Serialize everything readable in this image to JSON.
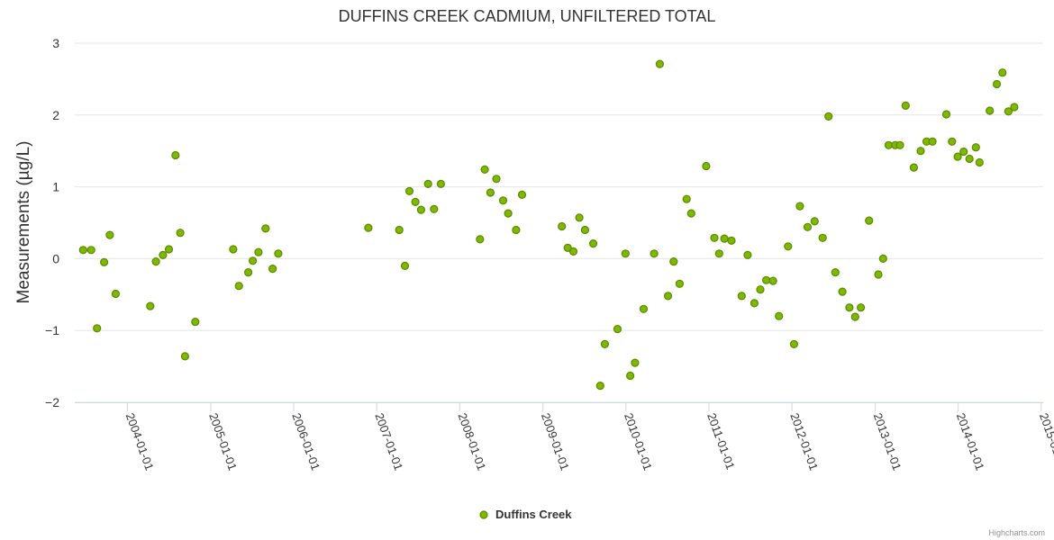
{
  "chart_data": {
    "type": "scatter",
    "title": "DUFFINS CREEK CADMIUM, UNFILTERED TOTAL",
    "xlabel": "",
    "ylabel": "Measurements (µg/L)",
    "x_axis_type": "datetime",
    "xlim": [
      "2003-05-14",
      "2015-01-10"
    ],
    "ylim": [
      -2,
      3
    ],
    "y_ticks": [
      -2,
      -1,
      0,
      1,
      2,
      3
    ],
    "y_tick_labels": [
      "−2",
      "−1",
      "0",
      "1",
      "2",
      "3"
    ],
    "x_tick_labels": [
      "2004-01-01",
      "2005-01-01",
      "2006-01-01",
      "2007-01-01",
      "2008-01-01",
      "2009-01-01",
      "2010-01-01",
      "2011-01-01",
      "2012-01-01",
      "2013-01-01",
      "2014-01-01",
      "2015-01-01"
    ],
    "grid": true,
    "legend_position": "bottom-center",
    "credits": "Highcharts.com",
    "colors": {
      "marker_fill": "#7fb800",
      "marker_stroke": "#5a8a00",
      "grid": "#e6e6e6",
      "axis": "#ccd6eb",
      "text": "#333333"
    },
    "series": [
      {
        "name": "Duffins Creek",
        "points": [
          {
            "x": "2003-06-20",
            "y": 0.12
          },
          {
            "x": "2003-07-25",
            "y": 0.12
          },
          {
            "x": "2003-08-20",
            "y": -0.97
          },
          {
            "x": "2003-09-20",
            "y": -0.05
          },
          {
            "x": "2003-10-15",
            "y": 0.33
          },
          {
            "x": "2003-11-10",
            "y": -0.49
          },
          {
            "x": "2004-04-10",
            "y": -0.66
          },
          {
            "x": "2004-05-05",
            "y": -0.04
          },
          {
            "x": "2004-06-05",
            "y": 0.05
          },
          {
            "x": "2004-07-01",
            "y": 0.13
          },
          {
            "x": "2004-07-30",
            "y": 1.44
          },
          {
            "x": "2004-08-20",
            "y": 0.36
          },
          {
            "x": "2004-09-10",
            "y": -1.36
          },
          {
            "x": "2004-10-25",
            "y": -0.88
          },
          {
            "x": "2005-04-10",
            "y": 0.13
          },
          {
            "x": "2005-05-05",
            "y": -0.38
          },
          {
            "x": "2005-06-15",
            "y": -0.19
          },
          {
            "x": "2005-07-05",
            "y": -0.03
          },
          {
            "x": "2005-07-30",
            "y": 0.09
          },
          {
            "x": "2005-08-30",
            "y": 0.42
          },
          {
            "x": "2005-09-30",
            "y": -0.14
          },
          {
            "x": "2005-10-25",
            "y": 0.07
          },
          {
            "x": "2006-11-25",
            "y": 0.43
          },
          {
            "x": "2007-04-10",
            "y": 0.4
          },
          {
            "x": "2007-05-05",
            "y": -0.1
          },
          {
            "x": "2007-05-25",
            "y": 0.94
          },
          {
            "x": "2007-06-20",
            "y": 0.79
          },
          {
            "x": "2007-07-15",
            "y": 0.68
          },
          {
            "x": "2007-08-15",
            "y": 1.04
          },
          {
            "x": "2007-09-10",
            "y": 0.69
          },
          {
            "x": "2007-10-10",
            "y": 1.04
          },
          {
            "x": "2008-03-30",
            "y": 0.27
          },
          {
            "x": "2008-04-20",
            "y": 1.24
          },
          {
            "x": "2008-05-15",
            "y": 0.92
          },
          {
            "x": "2008-06-10",
            "y": 1.11
          },
          {
            "x": "2008-07-10",
            "y": 0.81
          },
          {
            "x": "2008-08-01",
            "y": 0.63
          },
          {
            "x": "2008-09-05",
            "y": 0.4
          },
          {
            "x": "2008-10-01",
            "y": 0.89
          },
          {
            "x": "2009-03-25",
            "y": 0.45
          },
          {
            "x": "2009-04-20",
            "y": 0.15
          },
          {
            "x": "2009-05-15",
            "y": 0.1
          },
          {
            "x": "2009-06-10",
            "y": 0.57
          },
          {
            "x": "2009-07-05",
            "y": 0.4
          },
          {
            "x": "2009-08-10",
            "y": 0.21
          },
          {
            "x": "2009-09-10",
            "y": -1.77
          },
          {
            "x": "2009-09-30",
            "y": -1.19
          },
          {
            "x": "2009-11-25",
            "y": -0.98
          },
          {
            "x": "2009-12-30",
            "y": 0.07
          },
          {
            "x": "2010-01-20",
            "y": -1.63
          },
          {
            "x": "2010-02-10",
            "y": -1.45
          },
          {
            "x": "2010-03-20",
            "y": -0.7
          },
          {
            "x": "2010-05-05",
            "y": 0.07
          },
          {
            "x": "2010-05-30",
            "y": 2.71
          },
          {
            "x": "2010-07-05",
            "y": -0.52
          },
          {
            "x": "2010-07-30",
            "y": -0.04
          },
          {
            "x": "2010-08-25",
            "y": -0.35
          },
          {
            "x": "2010-09-25",
            "y": 0.83
          },
          {
            "x": "2010-10-15",
            "y": 0.63
          },
          {
            "x": "2010-12-20",
            "y": 1.29
          },
          {
            "x": "2011-01-25",
            "y": 0.29
          },
          {
            "x": "2011-02-15",
            "y": 0.07
          },
          {
            "x": "2011-03-10",
            "y": 0.28
          },
          {
            "x": "2011-04-10",
            "y": 0.25
          },
          {
            "x": "2011-05-25",
            "y": -0.52
          },
          {
            "x": "2011-06-20",
            "y": 0.05
          },
          {
            "x": "2011-07-20",
            "y": -0.62
          },
          {
            "x": "2011-08-15",
            "y": -0.43
          },
          {
            "x": "2011-09-10",
            "y": -0.3
          },
          {
            "x": "2011-10-10",
            "y": -0.31
          },
          {
            "x": "2011-11-05",
            "y": -0.8
          },
          {
            "x": "2011-12-15",
            "y": 0.17
          },
          {
            "x": "2012-01-10",
            "y": -1.19
          },
          {
            "x": "2012-02-05",
            "y": 0.73
          },
          {
            "x": "2012-03-10",
            "y": 0.44
          },
          {
            "x": "2012-04-10",
            "y": 0.52
          },
          {
            "x": "2012-05-15",
            "y": 0.29
          },
          {
            "x": "2012-06-10",
            "y": 1.98
          },
          {
            "x": "2012-07-10",
            "y": -0.19
          },
          {
            "x": "2012-08-10",
            "y": -0.46
          },
          {
            "x": "2012-09-10",
            "y": -0.68
          },
          {
            "x": "2012-10-05",
            "y": -0.81
          },
          {
            "x": "2012-10-30",
            "y": -0.68
          },
          {
            "x": "2012-12-05",
            "y": 0.53
          },
          {
            "x": "2013-01-15",
            "y": -0.22
          },
          {
            "x": "2013-02-05",
            "y": 0.0
          },
          {
            "x": "2013-03-01",
            "y": 1.58
          },
          {
            "x": "2013-03-30",
            "y": 1.58
          },
          {
            "x": "2013-04-20",
            "y": 1.58
          },
          {
            "x": "2013-05-15",
            "y": 2.13
          },
          {
            "x": "2013-06-20",
            "y": 1.27
          },
          {
            "x": "2013-07-20",
            "y": 1.5
          },
          {
            "x": "2013-08-15",
            "y": 1.63
          },
          {
            "x": "2013-09-10",
            "y": 1.63
          },
          {
            "x": "2013-11-10",
            "y": 2.01
          },
          {
            "x": "2013-12-05",
            "y": 1.63
          },
          {
            "x": "2013-12-30",
            "y": 1.42
          },
          {
            "x": "2014-01-25",
            "y": 1.49
          },
          {
            "x": "2014-02-20",
            "y": 1.39
          },
          {
            "x": "2014-03-20",
            "y": 1.55
          },
          {
            "x": "2014-04-05",
            "y": 1.34
          },
          {
            "x": "2014-05-20",
            "y": 2.06
          },
          {
            "x": "2014-06-20",
            "y": 2.43
          },
          {
            "x": "2014-07-15",
            "y": 2.59
          },
          {
            "x": "2014-08-10",
            "y": 2.05
          },
          {
            "x": "2014-09-05",
            "y": 2.11
          }
        ]
      }
    ]
  }
}
